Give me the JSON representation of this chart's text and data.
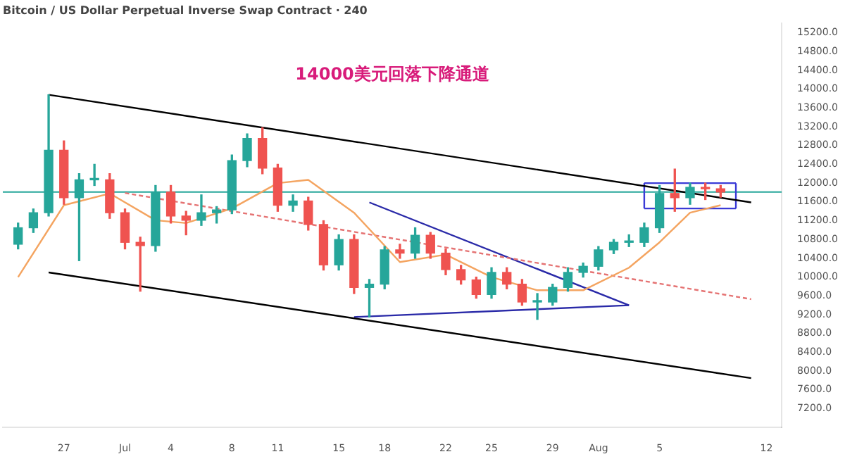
{
  "chart_data": {
    "type": "candlestick",
    "title": "Bitcoin / US Dollar Perpetual Inverse Swap Contract · 240",
    "annotations": [
      "14000美元回落下降通道"
    ],
    "x": [
      "--06-24",
      "--06-25",
      "--06-26",
      "--06-27",
      "--06-28",
      "--06-29",
      "--06-30",
      "--07-01",
      "--07-02",
      "--07-03",
      "--07-04",
      "--07-05",
      "--07-06",
      "--07-07",
      "--07-08",
      "--07-09",
      "--07-10",
      "--07-11",
      "--07-12",
      "--07-13",
      "--07-14",
      "--07-15",
      "--07-16",
      "--07-17",
      "--07-18",
      "--07-19",
      "--07-20",
      "--07-21",
      "--07-22",
      "--07-23",
      "--07-24",
      "--07-25",
      "--07-26",
      "--07-27",
      "--07-28",
      "--07-29",
      "--07-30",
      "--07-31",
      "--08-01",
      "--08-02",
      "--08-03",
      "--08-04",
      "--08-05",
      "--08-06",
      "--08-07",
      "--08-08",
      "--08-09"
    ],
    "ohlc": [
      [
        10700,
        11150,
        10600,
        11050
      ],
      [
        11050,
        11450,
        10950,
        11370
      ],
      [
        11370,
        13880,
        11300,
        12700
      ],
      [
        12700,
        12900,
        11550,
        11690
      ],
      [
        11690,
        12200,
        10350,
        12070
      ],
      [
        12070,
        12400,
        11950,
        12070
      ],
      [
        12070,
        12200,
        11250,
        11370
      ],
      [
        11370,
        11450,
        10600,
        10740
      ],
      [
        10740,
        10850,
        9700,
        10670
      ],
      [
        10670,
        11950,
        10550,
        11810
      ],
      [
        11810,
        11950,
        11150,
        11300
      ],
      [
        11300,
        11400,
        10900,
        11210
      ],
      [
        11210,
        11750,
        11100,
        11370
      ],
      [
        11370,
        11500,
        11150,
        11430
      ],
      [
        11430,
        12600,
        11350,
        12480
      ],
      [
        12480,
        13050,
        12350,
        12950
      ],
      [
        12950,
        13180,
        12200,
        12320
      ],
      [
        12320,
        12400,
        11400,
        11530
      ],
      [
        11530,
        11750,
        11400,
        11620
      ],
      [
        11620,
        11700,
        11000,
        11120
      ],
      [
        11120,
        11200,
        10150,
        10260
      ],
      [
        10260,
        10900,
        10150,
        10800
      ],
      [
        10800,
        10900,
        9650,
        9780
      ],
      [
        9780,
        9950,
        9150,
        9850
      ],
      [
        9850,
        10650,
        9750,
        10580
      ],
      [
        10580,
        10700,
        10400,
        10510
      ],
      [
        10510,
        11050,
        10400,
        10890
      ],
      [
        10890,
        10950,
        10400,
        10510
      ],
      [
        10510,
        10600,
        10050,
        10160
      ],
      [
        10160,
        10250,
        9850,
        9940
      ],
      [
        9940,
        10000,
        9550,
        9630
      ],
      [
        9630,
        10200,
        9550,
        10100
      ],
      [
        10100,
        10200,
        9750,
        9850
      ],
      [
        9850,
        9950,
        9400,
        9470
      ],
      [
        9470,
        9650,
        9100,
        9470
      ],
      [
        9470,
        9850,
        9400,
        9780
      ],
      [
        9780,
        10200,
        9700,
        10100
      ],
      [
        10100,
        10300,
        10000,
        10230
      ],
      [
        10230,
        10650,
        10150,
        10580
      ],
      [
        10580,
        10800,
        10500,
        10740
      ],
      [
        10740,
        10900,
        10650,
        10740
      ],
      [
        10740,
        11150,
        10650,
        11050
      ],
      [
        11050,
        11950,
        10950,
        11780
      ],
      [
        11780,
        12300,
        11400,
        11690
      ],
      [
        11690,
        12000,
        11550,
        11910
      ],
      [
        11910,
        12000,
        11650,
        11880
      ],
      [
        11880,
        11950,
        11700,
        11810
      ]
    ],
    "colors": [
      "#26a69a",
      "#26a69a",
      "#26a69a",
      "#ef5350",
      "#26a69a",
      "#26a69a",
      "#ef5350",
      "#ef5350",
      "#ef5350",
      "#26a69a",
      "#ef5350",
      "#ef5350",
      "#26a69a",
      "#26a69a",
      "#26a69a",
      "#26a69a",
      "#ef5350",
      "#ef5350",
      "#26a69a",
      "#ef5350",
      "#ef5350",
      "#26a69a",
      "#ef5350",
      "#26a69a",
      "#26a69a",
      "#ef5350",
      "#26a69a",
      "#ef5350",
      "#ef5350",
      "#ef5350",
      "#ef5350",
      "#26a69a",
      "#ef5350",
      "#ef5350",
      "#26a69a",
      "#26a69a",
      "#26a69a",
      "#26a69a",
      "#26a69a",
      "#26a69a",
      "#26a69a",
      "#26a69a",
      "#26a69a",
      "#ef5350",
      "#26a69a",
      "#ef5350",
      "#ef5350"
    ],
    "series": [
      {
        "type": "line",
        "color": "#f4a460",
        "x": [
          "--06-24",
          "--06-27",
          "--06-30",
          "--07-03",
          "--07-05",
          "--07-08",
          "--07-11",
          "--07-13",
          "--07-16",
          "--07-19",
          "--07-22",
          "--07-25",
          "--07-28",
          "--07-31",
          "--08-03",
          "--08-05",
          "--08-07",
          "--08-09"
        ],
        "values": [
          10000,
          11530,
          11780,
          11210,
          11150,
          11460,
          12000,
          12070,
          11370,
          10320,
          10480,
          10000,
          9720,
          9720,
          10200,
          10740,
          11370,
          11530
        ]
      },
      {
        "type": "line",
        "color": "#000000",
        "x": [
          "--06-26",
          "--08-11"
        ],
        "values": [
          13880,
          11590
        ]
      },
      {
        "type": "line",
        "color": "#000000",
        "x": [
          "--06-26",
          "--08-11"
        ],
        "values": [
          10100,
          7850
        ]
      },
      {
        "type": "line",
        "color": "#e57373",
        "line_style": "dashed",
        "x": [
          "--07-01",
          "--08-11"
        ],
        "values": [
          11790,
          9530
        ]
      },
      {
        "type": "line",
        "color": "#2a2aa8",
        "x": [
          "--07-17",
          "--08-03"
        ],
        "values": [
          11590,
          9400
        ]
      },
      {
        "type": "line",
        "color": "#2a2aa8",
        "x": [
          "--07-16",
          "--08-03"
        ],
        "values": [
          9150,
          9400
        ]
      },
      {
        "type": "line",
        "color": "#3b3bd6",
        "x": [
          "--08-04",
          "--08-10"
        ],
        "values": [
          12000,
          12000
        ]
      },
      {
        "type": "line",
        "color": "#3b3bd6",
        "x": [
          "--08-04",
          "--08-10"
        ],
        "values": [
          11460,
          11460
        ]
      },
      {
        "type": "line",
        "color": "#3b3bd6",
        "x": [
          "--08-04",
          "--08-04"
        ],
        "values": [
          11460,
          12000
        ]
      },
      {
        "type": "line",
        "color": "#3b3bd6",
        "x": [
          "--08-10",
          "--08-10"
        ],
        "values": [
          11460,
          12000
        ]
      }
    ],
    "ref_lines": [
      {
        "axis": "y",
        "value": 11810,
        "color": "#26a69a"
      }
    ],
    "xlim": [
      "--06-23",
      "--08-13"
    ],
    "xticks": [
      {
        "value": "--06-27",
        "label": "27"
      },
      {
        "value": "--07-01",
        "label": "Jul"
      },
      {
        "value": "--07-04",
        "label": "4"
      },
      {
        "value": "--07-08",
        "label": "8"
      },
      {
        "value": "--07-11",
        "label": "11"
      },
      {
        "value": "--07-15",
        "label": "15"
      },
      {
        "value": "--07-18",
        "label": "18"
      },
      {
        "value": "--07-22",
        "label": "22"
      },
      {
        "value": "--07-25",
        "label": "25"
      },
      {
        "value": "--07-29",
        "label": "29"
      },
      {
        "value": "--08-01",
        "label": "Aug"
      },
      {
        "value": "--08-05",
        "label": "5"
      },
      {
        "value": "--08-12",
        "label": "12"
      }
    ],
    "ylim": [
      6800,
      15400
    ],
    "yticks": [
      {
        "value": 7200,
        "label": "7200.0"
      },
      {
        "value": 7600,
        "label": "7600.0"
      },
      {
        "value": 8000,
        "label": "8000.0"
      },
      {
        "value": 8400,
        "label": "8400.0"
      },
      {
        "value": 8800,
        "label": "8800.0"
      },
      {
        "value": 9200,
        "label": "9200.0"
      },
      {
        "value": 9600,
        "label": "9600.0"
      },
      {
        "value": 10000,
        "label": "10000.0"
      },
      {
        "value": 10400,
        "label": "10400.0"
      },
      {
        "value": 10800,
        "label": "10800.0"
      },
      {
        "value": 11200,
        "label": "11200.0"
      },
      {
        "value": 11600,
        "label": "11600.0"
      },
      {
        "value": 12000,
        "label": "12000.0"
      },
      {
        "value": 12400,
        "label": "12400.0"
      },
      {
        "value": 12800,
        "label": "12800.0"
      },
      {
        "value": 13200,
        "label": "13200.0"
      },
      {
        "value": 13600,
        "label": "13600.0"
      },
      {
        "value": 14000,
        "label": "14000.0"
      },
      {
        "value": 14400,
        "label": "14400.0"
      },
      {
        "value": 14800,
        "label": "14800.0"
      },
      {
        "value": 15200,
        "label": "15200.0"
      }
    ],
    "marker": "none",
    "line_style": "solid",
    "grid": false,
    "legend": false
  }
}
